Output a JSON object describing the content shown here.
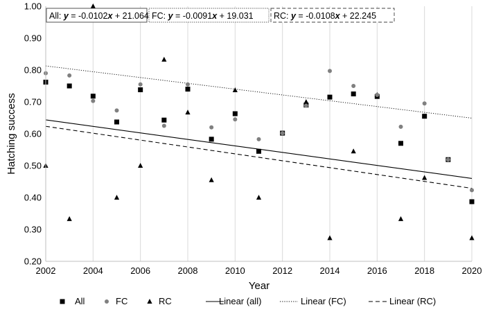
{
  "chart_data": {
    "type": "scatter",
    "title": "",
    "xlabel": "Year",
    "ylabel": "Hatching success",
    "xlim": [
      2002,
      2020
    ],
    "ylim": [
      0.2,
      1.0
    ],
    "x_ticks": [
      "2002",
      "2004",
      "2006",
      "2008",
      "2010",
      "2012",
      "2014",
      "2016",
      "2018",
      "2020"
    ],
    "y_ticks": [
      "0.20",
      "0.30",
      "0.40",
      "0.50",
      "0.60",
      "0.70",
      "0.80",
      "0.90",
      "1.00"
    ],
    "grid": "vertical",
    "legend_position": "bottom",
    "colors": {
      "all": "#000000",
      "fc": "#808080",
      "rc": "#000000",
      "grid": "#d9d9d9",
      "axis": "#bfbfbf"
    },
    "series": [
      {
        "name": "All",
        "marker": "square",
        "points": [
          [
            2002,
            0.762
          ],
          [
            2003,
            0.75
          ],
          [
            2004,
            0.718
          ],
          [
            2005,
            0.637
          ],
          [
            2006,
            0.738
          ],
          [
            2007,
            0.643
          ],
          [
            2008,
            0.74
          ],
          [
            2009,
            0.583
          ],
          [
            2010,
            0.663
          ],
          [
            2011,
            0.545
          ],
          [
            2012,
            0.602
          ],
          [
            2013,
            0.69
          ],
          [
            2014,
            0.715
          ],
          [
            2015,
            0.725
          ],
          [
            2016,
            0.717
          ],
          [
            2017,
            0.57
          ],
          [
            2018,
            0.655
          ],
          [
            2019,
            0.519
          ],
          [
            2020,
            0.387
          ]
        ]
      },
      {
        "name": "FC",
        "marker": "circle",
        "points": [
          [
            2002,
            0.79
          ],
          [
            2003,
            0.783
          ],
          [
            2004,
            0.703
          ],
          [
            2005,
            0.673
          ],
          [
            2006,
            0.755
          ],
          [
            2007,
            0.625
          ],
          [
            2008,
            0.755
          ],
          [
            2009,
            0.62
          ],
          [
            2010,
            0.645
          ],
          [
            2011,
            0.583
          ],
          [
            2012,
            0.602
          ],
          [
            2013,
            0.688
          ],
          [
            2014,
            0.797
          ],
          [
            2015,
            0.75
          ],
          [
            2016,
            0.722
          ],
          [
            2017,
            0.622
          ],
          [
            2018,
            0.695
          ],
          [
            2019,
            0.519
          ],
          [
            2020,
            0.423
          ]
        ]
      },
      {
        "name": "RC",
        "marker": "triangle",
        "points": [
          [
            2002,
            0.5
          ],
          [
            2003,
            0.333
          ],
          [
            2004,
            1.0
          ],
          [
            2005,
            0.4
          ],
          [
            2006,
            0.5
          ],
          [
            2007,
            0.833
          ],
          [
            2008,
            0.667
          ],
          [
            2009,
            0.455
          ],
          [
            2010,
            0.737
          ],
          [
            2011,
            0.4
          ],
          [
            2013,
            0.7
          ],
          [
            2014,
            0.273
          ],
          [
            2015,
            0.545
          ],
          [
            2016,
            0.722
          ],
          [
            2017,
            0.333
          ],
          [
            2018,
            0.462
          ],
          [
            2020,
            0.273
          ]
        ]
      }
    ],
    "trendlines": [
      {
        "name": "Linear (all)",
        "style": "solid",
        "slope": -0.0102,
        "intercept": 21.064,
        "equation_label": "All:",
        "equation": "y = -0.0102x + 21.064"
      },
      {
        "name": "Linear (FC)",
        "style": "dotted",
        "slope": -0.0091,
        "intercept": 19.031,
        "equation_label": "FC:",
        "equation": "y = -0.0091x + 19.031"
      },
      {
        "name": "Linear (RC)",
        "style": "dashed",
        "slope": -0.0108,
        "intercept": 22.245,
        "equation_label": "RC:",
        "equation": "y = -0.0108x + 22.245"
      }
    ],
    "legend": [
      "All",
      "FC",
      "RC",
      "Linear (all)",
      "Linear (FC)",
      "Linear (RC)"
    ]
  }
}
